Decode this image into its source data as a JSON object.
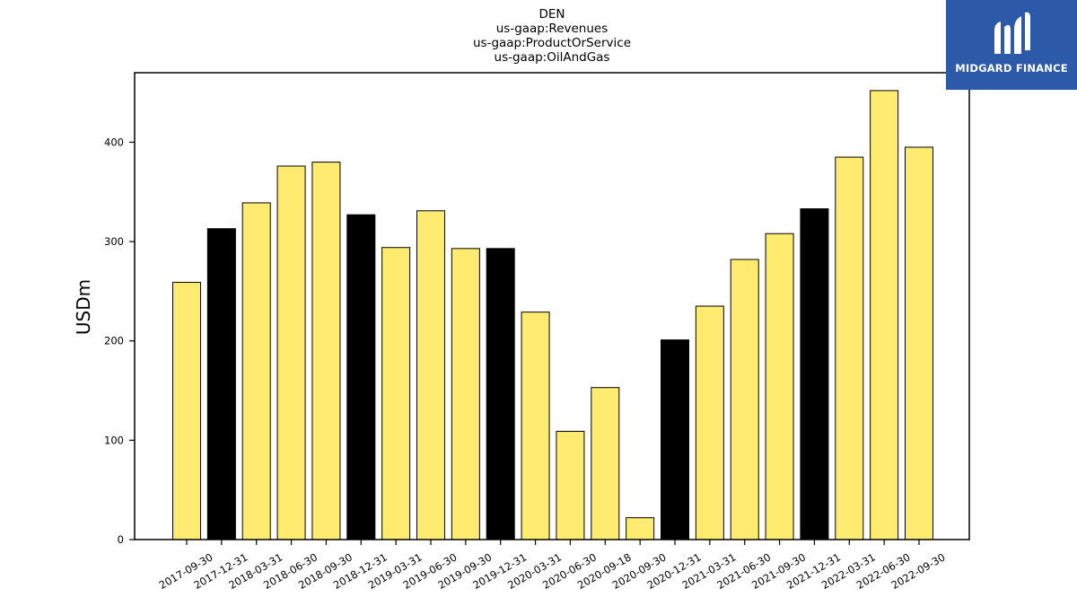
{
  "logo": {
    "text": "MIDGARD FINANCE",
    "icon": "mf-monogram-icon",
    "background": "#2d5aa8"
  },
  "chart_data": {
    "type": "bar",
    "title_lines": [
      "DEN",
      "us-gaap:Revenues",
      "us-gaap:ProductOrService",
      "us-gaap:OilAndGas"
    ],
    "xlabel": "",
    "ylabel": "USDm",
    "ylim": [
      0,
      470
    ],
    "yticks": [
      0,
      100,
      200,
      300,
      400
    ],
    "grid": false,
    "categories": [
      "2017-09-30",
      "2017-12-31",
      "2018-03-31",
      "2018-06-30",
      "2018-09-30",
      "2018-12-31",
      "2019-03-31",
      "2019-06-30",
      "2019-09-30",
      "2019-12-31",
      "2020-03-31",
      "2020-06-30",
      "2020-09-18",
      "2020-09-30",
      "2020-12-31",
      "2021-03-31",
      "2021-06-30",
      "2021-09-30",
      "2021-12-31",
      "2022-03-31",
      "2022-06-30",
      "2022-09-30"
    ],
    "values": [
      259,
      313,
      339,
      376,
      380,
      327,
      294,
      331,
      293,
      293,
      229,
      109,
      153,
      22,
      201,
      235,
      282,
      308,
      333,
      385,
      452,
      395
    ],
    "bar_colors": [
      "#ffeb70",
      "#000000",
      "#ffeb70",
      "#ffeb70",
      "#ffeb70",
      "#000000",
      "#ffeb70",
      "#ffeb70",
      "#ffeb70",
      "#000000",
      "#ffeb70",
      "#ffeb70",
      "#ffeb70",
      "#ffeb70",
      "#000000",
      "#ffeb70",
      "#ffeb70",
      "#ffeb70",
      "#000000",
      "#ffeb70",
      "#ffeb70",
      "#ffeb70"
    ]
  }
}
